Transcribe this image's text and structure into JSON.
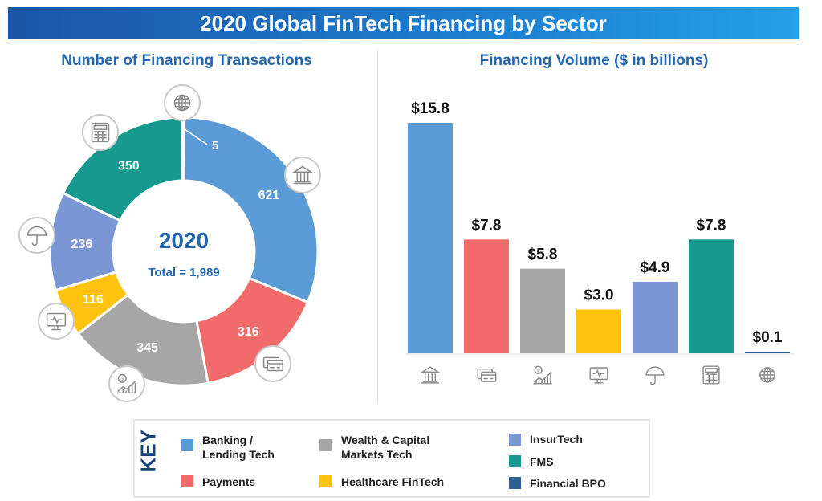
{
  "title": "2020 Global FinTech Financing by Sector",
  "colors": {
    "banking": "#5b9bd5",
    "payments": "#f26b6b",
    "wealth": "#a6a6a6",
    "healthcare": "#ffc20e",
    "insurtech": "#7b96d4",
    "fms": "#17998f",
    "bpo": "#2d5f94"
  },
  "chart_data": [
    {
      "type": "pie",
      "title": "Number of Financing Transactions",
      "center_label": "2020",
      "center_sublabel": "Total = 1,989",
      "categories": [
        "Banking / Lending Tech",
        "Payments",
        "Wealth & Capital Markets Tech",
        "Healthcare FinTech",
        "InsurTech",
        "FMS",
        "Financial BPO"
      ],
      "values": [
        621,
        316,
        345,
        116,
        236,
        350,
        5
      ],
      "labels": [
        "621",
        "316",
        "345",
        "116",
        "236",
        "350",
        "5"
      ],
      "icons": [
        "bank-icon",
        "credit-cards-icon",
        "wealth-chart-icon",
        "healthcare-monitor-icon",
        "umbrella-icon",
        "calculator-icon",
        "globe-icon"
      ]
    },
    {
      "type": "bar",
      "title": "Financing Volume ($ in billions)",
      "categories": [
        "Banking / Lending Tech",
        "Payments",
        "Wealth & Capital Markets Tech",
        "Healthcare FinTech",
        "InsurTech",
        "FMS",
        "Financial BPO"
      ],
      "values": [
        15.8,
        7.8,
        5.8,
        3.0,
        4.9,
        7.8,
        0.1
      ],
      "labels": [
        "$15.8",
        "$7.8",
        "$5.8",
        "$3.0",
        "$4.9",
        "$7.8",
        "$0.1"
      ],
      "icons": [
        "bank-icon",
        "credit-cards-icon",
        "wealth-chart-icon",
        "healthcare-monitor-icon",
        "umbrella-icon",
        "calculator-icon",
        "globe-icon"
      ],
      "ylim": [
        0,
        15.8
      ],
      "grid": false
    }
  ],
  "key": {
    "label": "KEY",
    "items": [
      {
        "label": "Banking / Lending Tech",
        "line1": "Banking /",
        "line2": "Lending Tech",
        "color": "#5b9bd5"
      },
      {
        "label": "Payments",
        "color": "#f26b6b"
      },
      {
        "label": "Wealth & Capital Markets Tech",
        "line1": "Wealth & Capital",
        "line2": "Markets Tech",
        "color": "#a6a6a6"
      },
      {
        "label": "Healthcare FinTech",
        "color": "#ffc20e"
      },
      {
        "label": "InsurTech",
        "color": "#7b96d4"
      },
      {
        "label": "FMS",
        "color": "#17998f"
      },
      {
        "label": "Financial BPO",
        "color": "#2d5f94"
      }
    ]
  }
}
